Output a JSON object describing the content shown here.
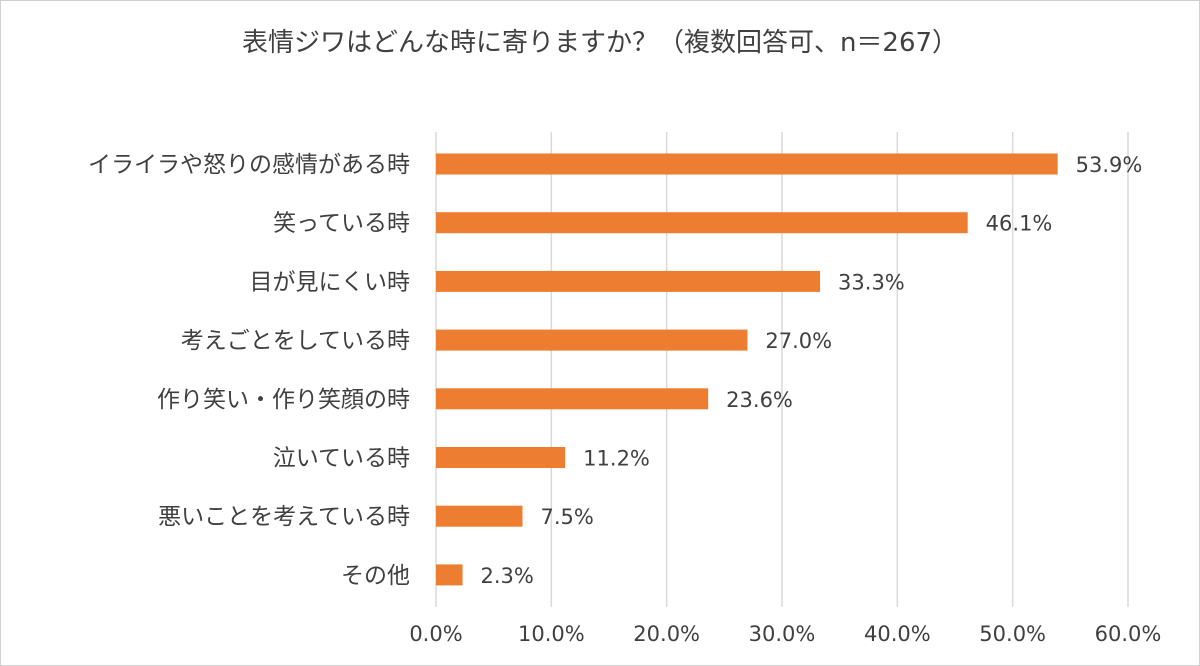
{
  "chart_data": {
    "type": "bar",
    "orientation": "horizontal",
    "title": "表情ジワはどんな時に寄りますか？（複数回答可、n＝267）",
    "categories": [
      "イライラや怒りの感情がある時",
      "笑っている時",
      "目が見にくい時",
      "考えごとをしている時",
      "作り笑い・作り笑顔の時",
      "泣いている時",
      "悪いことを考えている時",
      "その他"
    ],
    "values": [
      53.9,
      46.1,
      33.3,
      27.0,
      23.6,
      11.2,
      7.5,
      2.3
    ],
    "value_labels": [
      "53.9%",
      "46.1%",
      "33.3%",
      "27.0%",
      "23.6%",
      "11.2%",
      "7.5%",
      "2.3%"
    ],
    "xlim": [
      0,
      60
    ],
    "x_ticks": [
      0,
      10,
      20,
      30,
      40,
      50,
      60
    ],
    "x_tick_labels": [
      "0.0%",
      "10.0%",
      "20.0%",
      "30.0%",
      "40.0%",
      "50.0%",
      "60.0%"
    ],
    "grid": true,
    "legend": "none",
    "bar_color": "#ed7d31",
    "grid_color": "#d9d9d9",
    "text_color": "#404040"
  }
}
